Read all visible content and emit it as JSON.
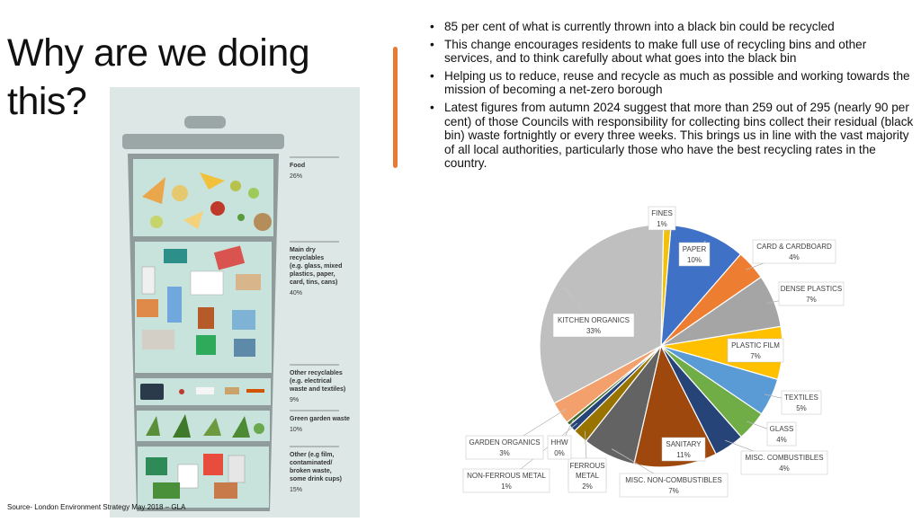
{
  "slide": {
    "title": "Why are we doing this?",
    "bullets": [
      "85 per cent of what is currently thrown into a black bin could be recycled",
      "This change encourages residents to make full use of recycling bins and other services, and to think carefully about what goes into the black bin",
      "Helping us to reduce, reuse and recycle as much as possible and working towards the mission of becoming a net-zero borough",
      "Latest figures from autumn 2024 suggest that more than 259 out of 295 (nearly 90 per cent) of those Councils with responsibility for collecting bins collect their residual (black bin) waste fortnightly or every three weeks. This brings us in line with the vast majority of all local authorities, particularly those who have the best recycling rates in the country."
    ],
    "source": "Source- London Environment Strategy May 2018 – GLA",
    "accent_color": "#e87a38"
  },
  "bin_infographic": {
    "sections": [
      {
        "lines": [
          "Food"
        ],
        "pct": "26%",
        "color": "#c7e3dc"
      },
      {
        "lines": [
          "Main dry",
          "recyclables",
          "(e.g. glass, mixed",
          "plastics, paper,",
          "card, tins, cans)"
        ],
        "pct": "40%",
        "color": "#c7e3dc"
      },
      {
        "lines": [
          "Other recyclables",
          "(e.g. electrical",
          "waste and textiles)"
        ],
        "pct": "9%",
        "color": "#c7e3dc"
      },
      {
        "lines": [
          "Green garden waste"
        ],
        "pct": "10%",
        "color": "#c7e3dc"
      },
      {
        "lines": [
          "Other (e.g film,",
          "contaminated/",
          "broken waste,",
          "some drink cups)"
        ],
        "pct": "15%",
        "color": "#c7e3dc"
      }
    ]
  },
  "chart_data": {
    "type": "pie",
    "title": "",
    "slices": [
      {
        "label": "FINES",
        "value": 1,
        "display": "1%",
        "color": "#f2c20a"
      },
      {
        "label": "PAPER",
        "value": 10,
        "display": "10%",
        "color": "#3f72c7"
      },
      {
        "label": "CARD & CARDBOARD",
        "value": 4,
        "display": "4%",
        "color": "#ed7d31"
      },
      {
        "label": "DENSE PLASTICS",
        "value": 7,
        "display": "7%",
        "color": "#a5a5a5"
      },
      {
        "label": "PLASTIC FILM",
        "value": 7,
        "display": "7%",
        "color": "#ffc000"
      },
      {
        "label": "TEXTILES",
        "value": 5,
        "display": "5%",
        "color": "#5b9bd5"
      },
      {
        "label": "GLASS",
        "value": 4,
        "display": "4%",
        "color": "#70ad47"
      },
      {
        "label": "MISC. COMBUSTIBLES",
        "value": 4,
        "display": "4%",
        "color": "#264478"
      },
      {
        "label": "SANITARY",
        "value": 11,
        "display": "11%",
        "color": "#9e480e"
      },
      {
        "label": "MISC. NON-COMBUSTIBLES",
        "value": 7,
        "display": "7%",
        "color": "#636363"
      },
      {
        "label": "FERROUS METAL",
        "value": 2,
        "display": "2%",
        "color": "#997300"
      },
      {
        "label": "NON-FERROUS METAL",
        "value": 1,
        "display": "1%",
        "color": "#264478"
      },
      {
        "label": "HHW",
        "value": 0.5,
        "display": "0%",
        "color": "#43682b"
      },
      {
        "label": "GARDEN ORGANICS",
        "value": 3,
        "display": "3%",
        "color": "#f4a06c"
      },
      {
        "label": "KITCHEN ORGANICS",
        "value": 33,
        "display": "33%",
        "color": "#bfbfbf"
      }
    ]
  }
}
